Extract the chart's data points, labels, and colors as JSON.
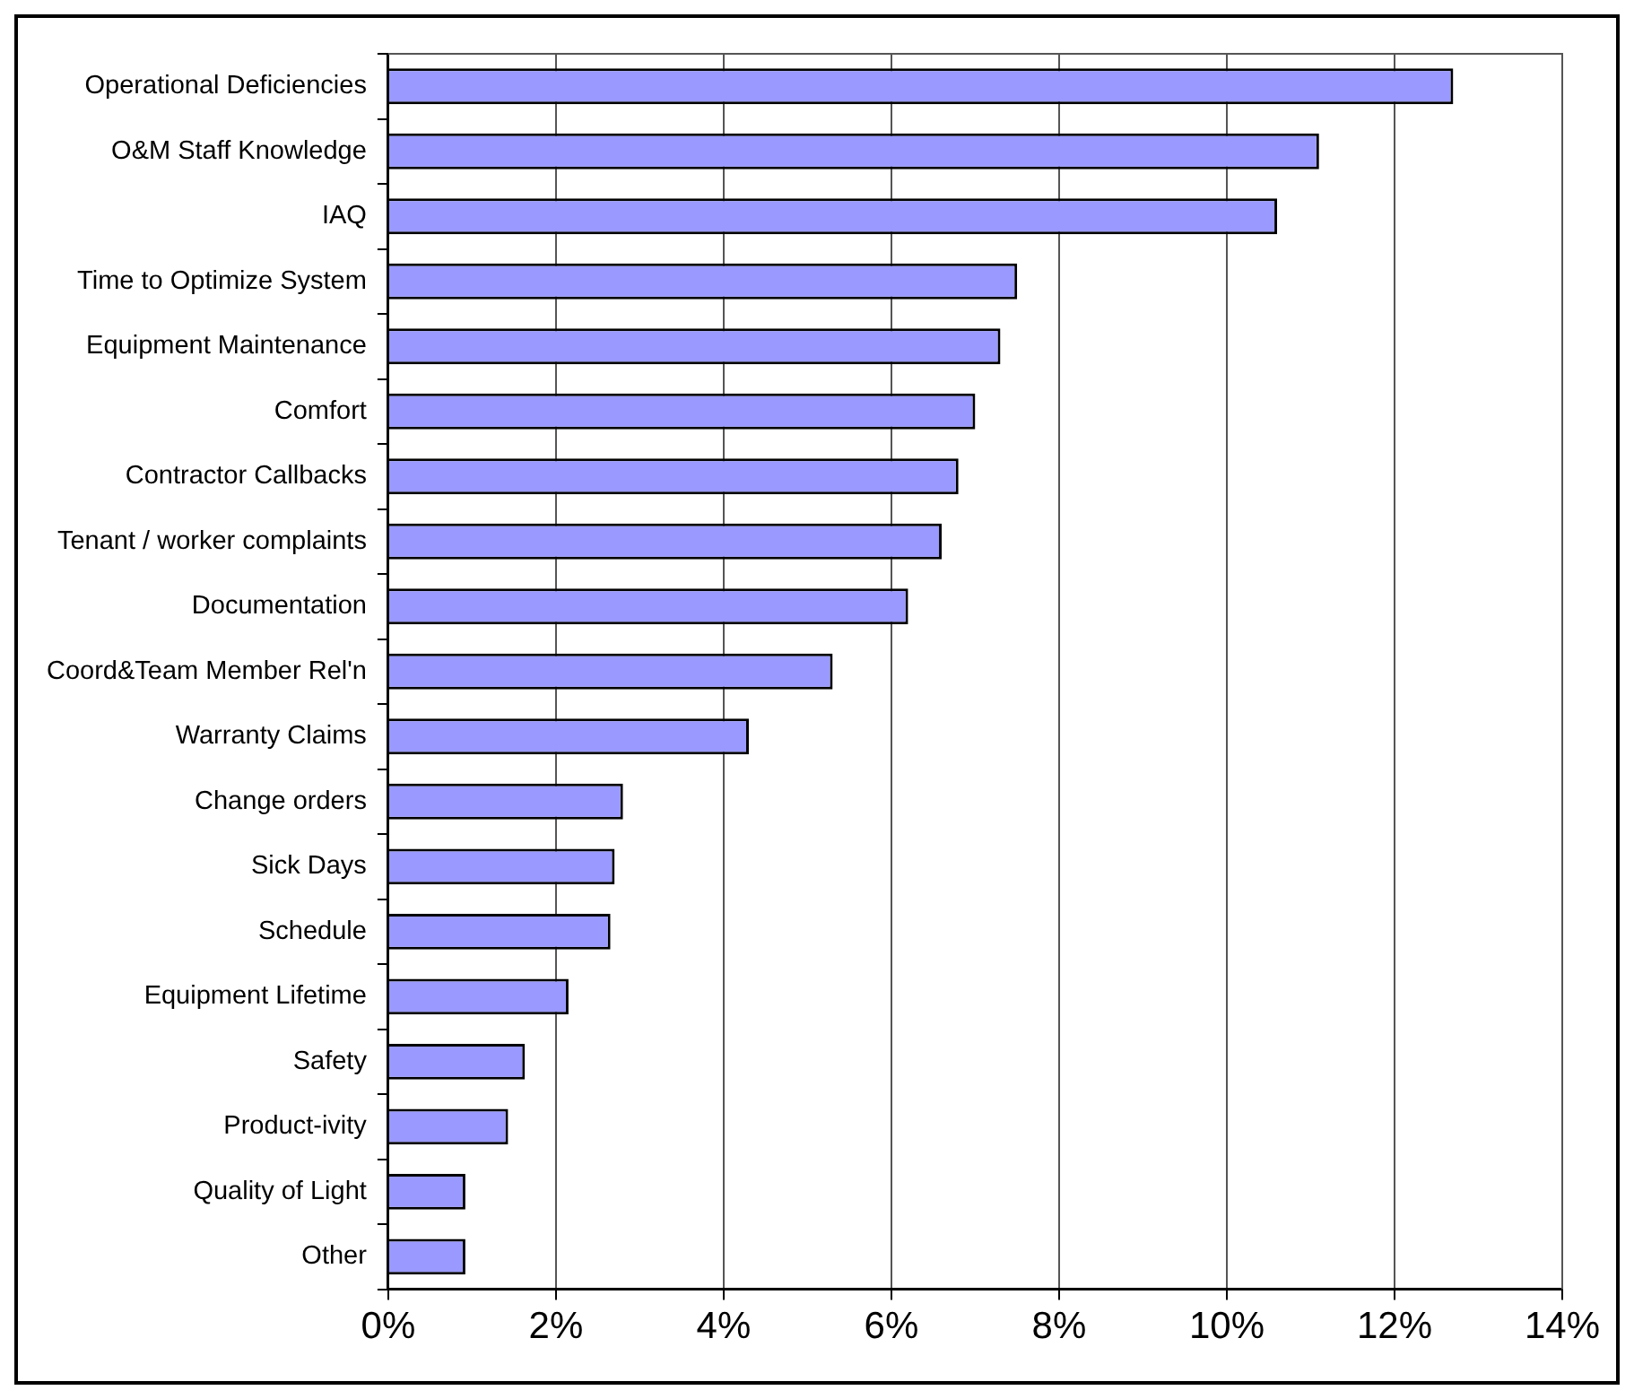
{
  "chart_data": {
    "type": "bar",
    "orientation": "horizontal",
    "categories": [
      "Operational Deficiencies",
      "O&M Staff Knowledge",
      "IAQ",
      "Time to Optimize System",
      "Equipment Maintenance",
      "Comfort",
      "Contractor Callbacks",
      "Tenant / worker complaints",
      "Documentation",
      "Coord&Team Member Rel'n",
      "Warranty Claims",
      "Change orders",
      "Sick Days",
      "Schedule",
      "Equipment Lifetime",
      "Safety",
      "Product-ivity",
      "Quality of Light",
      "Other"
    ],
    "values": [
      12.7,
      11.1,
      10.6,
      7.5,
      7.3,
      7.0,
      6.8,
      6.6,
      6.2,
      5.3,
      4.3,
      2.8,
      2.7,
      2.65,
      2.15,
      1.63,
      1.43,
      0.92,
      0.92
    ],
    "color": "#9999ff",
    "xlim": [
      0,
      14
    ],
    "xticks": [
      {
        "value": 0,
        "label": "0%"
      },
      {
        "value": 2,
        "label": "2%"
      },
      {
        "value": 4,
        "label": "4%"
      },
      {
        "value": 6,
        "label": "6%"
      },
      {
        "value": 8,
        "label": "8%"
      },
      {
        "value": 10,
        "label": "10%"
      },
      {
        "value": 12,
        "label": "12%"
      },
      {
        "value": 14,
        "label": "14%"
      }
    ],
    "grid": "x",
    "legend": false
  }
}
